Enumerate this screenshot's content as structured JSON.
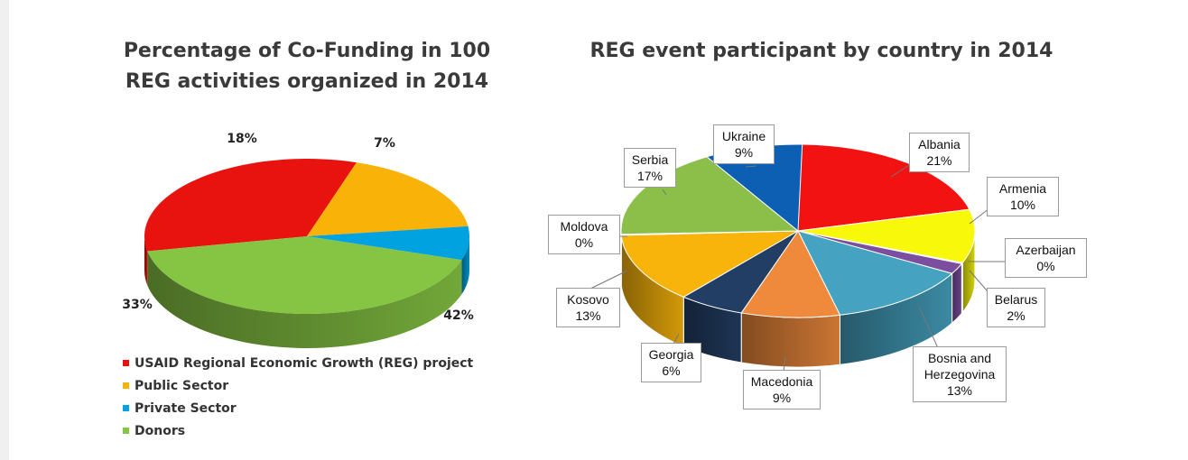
{
  "chart_data": [
    {
      "type": "pie",
      "title_lines": [
        "Percentage of Co-Funding in 100",
        "REG activities organized in 2014"
      ],
      "slices": [
        {
          "name": "USAID Regional Economic Growth (REG) project",
          "value": 33,
          "label": "33%",
          "color": "#e8120f"
        },
        {
          "name": "Public Sector",
          "value": 18,
          "label": "18%",
          "color": "#f9b208"
        },
        {
          "name": "Private Sector",
          "value": 7,
          "label": "7%",
          "color": "#00a3e0"
        },
        {
          "name": "Donors",
          "value": 42,
          "label": "42%",
          "color": "#86c443"
        }
      ],
      "legend": [
        {
          "label": "USAID Regional Economic Growth (REG) project",
          "color": "#e8120f"
        },
        {
          "label": "Public Sector",
          "color": "#f9b208"
        },
        {
          "label": "Private Sector",
          "color": "#00a3e0"
        },
        {
          "label": "Donors",
          "color": "#86c443"
        }
      ],
      "legend_placement": "bottom-left"
    },
    {
      "type": "pie",
      "title": "REG event participant by country in 2014",
      "slices": [
        {
          "name": "Albania",
          "value": 21,
          "label": "21%",
          "color": "#f21212"
        },
        {
          "name": "Armenia",
          "value": 10,
          "label": "10%",
          "color": "#f8f80a"
        },
        {
          "name": "Azerbaijan",
          "value": 0,
          "label": "0%",
          "color": "#7c4ea0"
        },
        {
          "name": "Belarus",
          "value": 2,
          "label": "2%",
          "color": "#7c4ea0"
        },
        {
          "name": "Bosnia and Herzegovina",
          "value": 13,
          "label": "13%",
          "color": "#45a2c0"
        },
        {
          "name": "Macedonia",
          "value": 9,
          "label": "9%",
          "color": "#ef8a3c"
        },
        {
          "name": "Georgia",
          "value": 6,
          "label": "6%",
          "color": "#233e64"
        },
        {
          "name": "Kosovo",
          "value": 13,
          "label": "13%",
          "color": "#f8b40a"
        },
        {
          "name": "Moldova",
          "value": 0,
          "label": "0%",
          "color": "#8cbf4a"
        },
        {
          "name": "Serbia",
          "value": 17,
          "label": "17%",
          "color": "#8cbf4a"
        },
        {
          "name": "Ukraine",
          "value": 9,
          "label": "9%",
          "color": "#0c5fb3"
        }
      ]
    }
  ]
}
